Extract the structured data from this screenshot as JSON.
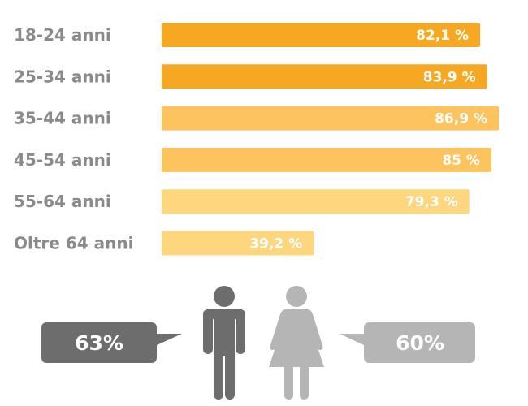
{
  "chart_data": {
    "type": "bar",
    "orientation": "horizontal",
    "categories": [
      "18-24 anni",
      "25-34 anni",
      "35-44 anni",
      "45-54 anni",
      "55-64 anni",
      "Oltre 64 anni"
    ],
    "values": [
      82.1,
      83.9,
      86.9,
      85,
      79.3,
      39.2
    ],
    "value_labels": [
      "82,1 %",
      "83,9 %",
      "86,9 %",
      "85 %",
      "79,3  %",
      "39,2 %"
    ],
    "bar_colors": [
      "#f7a823",
      "#f7a823",
      "#fdc35e",
      "#fdc35e",
      "#fdd67e",
      "#fdd67e"
    ],
    "xlim": [
      0,
      100
    ],
    "grid": false,
    "title": "",
    "xlabel": "",
    "ylabel": ""
  },
  "gender": {
    "male": {
      "value": "63%",
      "icon": "male-figure-icon",
      "color": "#6d6d6d"
    },
    "female": {
      "value": "60%",
      "icon": "female-figure-icon",
      "color": "#b5b5b5"
    }
  }
}
